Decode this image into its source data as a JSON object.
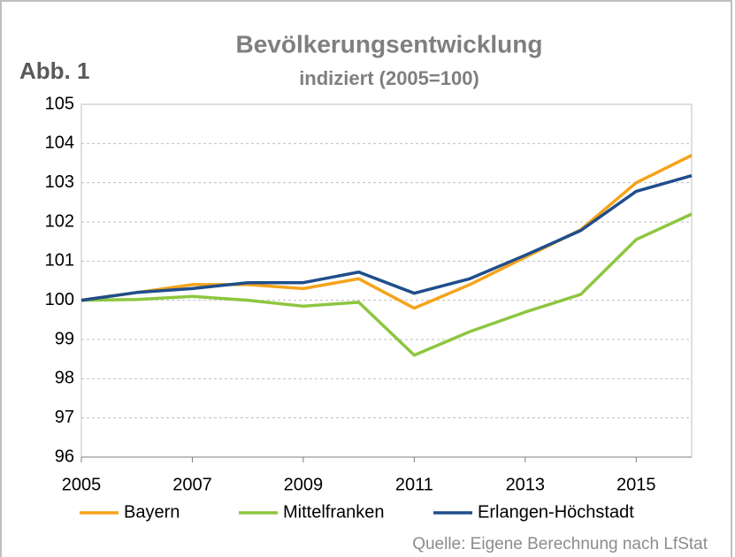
{
  "chart_data": {
    "type": "line",
    "label": "Abb. 1",
    "title": "Bevölkerungsentwicklung",
    "subtitle": "indiziert (2005=100)",
    "source": "Quelle: Eigene Berechnung nach LfStat",
    "x": [
      2005,
      2006,
      2007,
      2008,
      2009,
      2010,
      2011,
      2012,
      2013,
      2014,
      2015,
      2016
    ],
    "series": [
      {
        "name": "Bayern",
        "color": "#f5a31a",
        "values": [
          100,
          100.2,
          100.4,
          100.4,
          100.3,
          100.55,
          99.8,
          100.4,
          101.1,
          101.8,
          103.0,
          103.7
        ]
      },
      {
        "name": "Mittelfranken",
        "color": "#8dc63f",
        "values": [
          100,
          100.02,
          100.1,
          100.0,
          99.85,
          99.95,
          98.6,
          99.2,
          99.7,
          100.15,
          101.55,
          102.2
        ]
      },
      {
        "name": "Erlangen-Höchstadt",
        "color": "#1f4e8c",
        "values": [
          100,
          100.2,
          100.3,
          100.45,
          100.45,
          100.72,
          100.18,
          100.55,
          101.15,
          101.78,
          102.78,
          103.18
        ]
      }
    ],
    "xlim": [
      2005,
      2016
    ],
    "xticks": [
      2005,
      2007,
      2009,
      2011,
      2013,
      2015
    ],
    "ylim": [
      96,
      105
    ],
    "yticks": [
      96,
      97,
      98,
      99,
      100,
      101,
      102,
      103,
      104,
      105
    ],
    "grid": true,
    "legend": "bottom"
  }
}
